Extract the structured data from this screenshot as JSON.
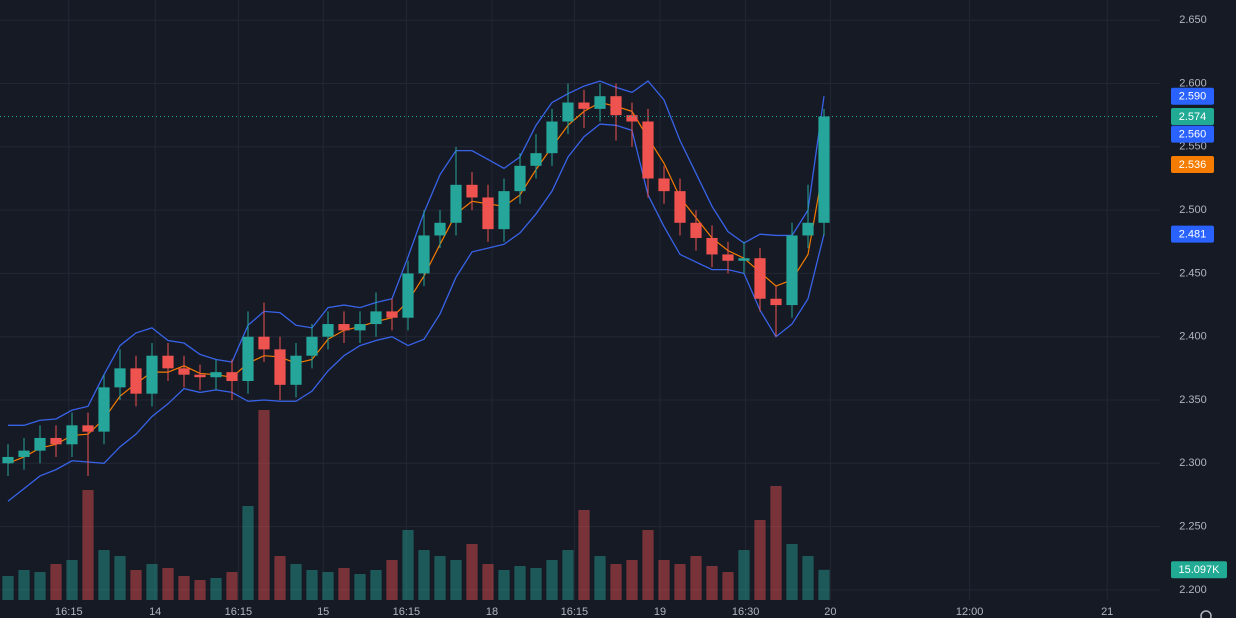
{
  "chart_data": {
    "type": "candlestick",
    "x": [
      0,
      1,
      2,
      3,
      4,
      5,
      6,
      7,
      8,
      9,
      10,
      11,
      12,
      13,
      14,
      15,
      16,
      17,
      18,
      19,
      20,
      21,
      22,
      23,
      24,
      25,
      26,
      27,
      28,
      29,
      30,
      31,
      32,
      33,
      34,
      35,
      36,
      37,
      38,
      39,
      40,
      41,
      42,
      43,
      44,
      45,
      46,
      47,
      48,
      49,
      50,
      51
    ],
    "open": [
      2.3,
      2.305,
      2.31,
      2.32,
      2.315,
      2.33,
      2.325,
      2.36,
      2.375,
      2.355,
      2.385,
      2.375,
      2.37,
      2.368,
      2.372,
      2.365,
      2.4,
      2.39,
      2.362,
      2.385,
      2.4,
      2.41,
      2.405,
      2.41,
      2.42,
      2.415,
      2.45,
      2.48,
      2.49,
      2.52,
      2.51,
      2.485,
      2.515,
      2.535,
      2.545,
      2.57,
      2.585,
      2.58,
      2.59,
      2.575,
      2.57,
      2.525,
      2.515,
      2.49,
      2.478,
      2.465,
      2.46,
      2.462,
      2.43,
      2.425,
      2.48,
      2.49
    ],
    "high": [
      2.315,
      2.32,
      2.33,
      2.33,
      2.34,
      2.34,
      2.37,
      2.39,
      2.385,
      2.395,
      2.395,
      2.385,
      2.378,
      2.382,
      2.382,
      2.42,
      2.427,
      2.4,
      2.395,
      2.41,
      2.42,
      2.42,
      2.42,
      2.435,
      2.43,
      2.46,
      2.5,
      2.5,
      2.55,
      2.53,
      2.52,
      2.525,
      2.545,
      2.56,
      2.58,
      2.6,
      2.595,
      2.6,
      2.6,
      2.585,
      2.58,
      2.535,
      2.525,
      2.5,
      2.488,
      2.475,
      2.475,
      2.47,
      2.44,
      2.49,
      2.52,
      2.58
    ],
    "low": [
      2.29,
      2.295,
      2.3,
      2.305,
      2.305,
      2.29,
      2.315,
      2.35,
      2.345,
      2.345,
      2.365,
      2.36,
      2.358,
      2.358,
      2.35,
      2.355,
      2.38,
      2.35,
      2.352,
      2.375,
      2.39,
      2.395,
      2.395,
      2.4,
      2.405,
      2.405,
      2.44,
      2.47,
      2.48,
      2.5,
      2.475,
      2.475,
      2.505,
      2.525,
      2.535,
      2.56,
      2.565,
      2.57,
      2.555,
      2.55,
      2.51,
      2.505,
      2.48,
      2.468,
      2.455,
      2.45,
      2.45,
      2.42,
      2.4,
      2.415,
      2.47,
      2.48
    ],
    "close": [
      2.305,
      2.31,
      2.32,
      2.315,
      2.33,
      2.325,
      2.36,
      2.375,
      2.355,
      2.385,
      2.375,
      2.37,
      2.368,
      2.372,
      2.365,
      2.4,
      2.39,
      2.362,
      2.385,
      2.4,
      2.41,
      2.405,
      2.41,
      2.42,
      2.415,
      2.45,
      2.48,
      2.49,
      2.52,
      2.51,
      2.485,
      2.515,
      2.535,
      2.545,
      2.57,
      2.585,
      2.58,
      2.59,
      2.575,
      2.57,
      2.525,
      2.515,
      2.49,
      2.478,
      2.465,
      2.46,
      2.462,
      2.43,
      2.425,
      2.48,
      2.49,
      2.574
    ],
    "up_color": "#26a69a",
    "down_color": "#ef5350",
    "series": [
      {
        "color": "#3863e8",
        "values": [
          2.33,
          2.33,
          2.334,
          2.335,
          2.342,
          2.345,
          2.37,
          2.393,
          2.403,
          2.407,
          2.397,
          2.395,
          2.386,
          2.382,
          2.38,
          2.409,
          2.42,
          2.419,
          2.409,
          2.407,
          2.423,
          2.425,
          2.423,
          2.427,
          2.43,
          2.463,
          2.498,
          2.528,
          2.547,
          2.547,
          2.54,
          2.533,
          2.542,
          2.567,
          2.585,
          2.592,
          2.598,
          2.602,
          2.597,
          2.593,
          2.602,
          2.587,
          2.555,
          2.529,
          2.503,
          2.483,
          2.474,
          2.481,
          2.48,
          2.48,
          2.5,
          2.59
        ]
      },
      {
        "color": "#f57c00",
        "values": [
          2.3,
          2.305,
          2.312,
          2.315,
          2.322,
          2.323,
          2.335,
          2.353,
          2.363,
          2.372,
          2.372,
          2.377,
          2.371,
          2.37,
          2.368,
          2.379,
          2.385,
          2.384,
          2.379,
          2.382,
          2.398,
          2.405,
          2.408,
          2.412,
          2.415,
          2.428,
          2.448,
          2.473,
          2.497,
          2.507,
          2.505,
          2.503,
          2.512,
          2.532,
          2.55,
          2.567,
          2.578,
          2.585,
          2.582,
          2.578,
          2.557,
          2.537,
          2.51,
          2.494,
          2.478,
          2.468,
          2.462,
          2.451,
          2.44,
          2.445,
          2.465,
          2.536
        ]
      },
      {
        "color": "#3863e8",
        "values": [
          2.27,
          2.28,
          2.29,
          2.295,
          2.302,
          2.301,
          2.3,
          2.313,
          2.323,
          2.337,
          2.347,
          2.359,
          2.356,
          2.358,
          2.356,
          2.349,
          2.35,
          2.349,
          2.349,
          2.357,
          2.373,
          2.385,
          2.393,
          2.397,
          2.4,
          2.393,
          2.398,
          2.418,
          2.447,
          2.467,
          2.47,
          2.473,
          2.482,
          2.497,
          2.515,
          2.542,
          2.558,
          2.568,
          2.567,
          2.563,
          2.512,
          2.487,
          2.465,
          2.459,
          2.453,
          2.453,
          2.45,
          2.421,
          2.4,
          2.41,
          2.43,
          2.481
        ]
      }
    ],
    "volume": [
      12000,
      15000,
      14000,
      18000,
      20000,
      55000,
      25000,
      22000,
      15000,
      18000,
      16000,
      12000,
      10000,
      11000,
      14000,
      47000,
      95000,
      22000,
      18000,
      15000,
      14000,
      16000,
      13000,
      15000,
      20000,
      35000,
      25000,
      22000,
      20000,
      28000,
      18000,
      15000,
      17000,
      16000,
      20000,
      25000,
      45000,
      22000,
      18000,
      20000,
      35000,
      20000,
      18000,
      22000,
      17000,
      14000,
      25000,
      40000,
      57000,
      28000,
      22000,
      15097
    ],
    "vlim": [
      0,
      100000
    ],
    "xlim": [
      -0.5,
      72
    ],
    "ylim": [
      2.192,
      2.666
    ],
    "yticks": [
      {
        "value": 2.65,
        "label": "2.650"
      },
      {
        "value": 2.6,
        "label": "2.600"
      },
      {
        "value": 2.55,
        "label": "2.550"
      },
      {
        "value": 2.5,
        "label": "2.500"
      },
      {
        "value": 2.45,
        "label": "2.450"
      },
      {
        "value": 2.4,
        "label": "2.400"
      },
      {
        "value": 2.35,
        "label": "2.350"
      },
      {
        "value": 2.3,
        "label": "2.300"
      },
      {
        "value": 2.25,
        "label": "2.250"
      },
      {
        "value": 2.2,
        "label": "2.200"
      }
    ],
    "xticks": [
      {
        "value": 3.8,
        "label": "16:15"
      },
      {
        "value": 9.2,
        "label": "14"
      },
      {
        "value": 14.4,
        "label": "16:15"
      },
      {
        "value": 19.7,
        "label": "15"
      },
      {
        "value": 24.9,
        "label": "16:15"
      },
      {
        "value": 30.25,
        "label": "18"
      },
      {
        "value": 35.4,
        "label": "16:15"
      },
      {
        "value": 40.75,
        "label": "19"
      },
      {
        "value": 46.1,
        "label": "16:30"
      },
      {
        "value": 51.4,
        "label": "20"
      },
      {
        "value": 60.1,
        "label": "12:00"
      },
      {
        "value": 68.7,
        "label": "21"
      }
    ],
    "price_labels": [
      {
        "value": 2.59,
        "label": "2.590",
        "color": "#2962ff"
      },
      {
        "value": 2.574,
        "label": "2.574",
        "color": "#22ab94"
      },
      {
        "value": 2.56,
        "label": "2.560",
        "color": "#2962ff"
      },
      {
        "value": 2.536,
        "label": "2.536",
        "color": "#f57c00"
      },
      {
        "value": 2.481,
        "label": "2.481",
        "color": "#2962ff"
      },
      {
        "value": 15097,
        "label": "15.097K",
        "color": "#22ab94",
        "axis": "volume"
      }
    ],
    "last_price_line": 2.574,
    "grid": true
  }
}
